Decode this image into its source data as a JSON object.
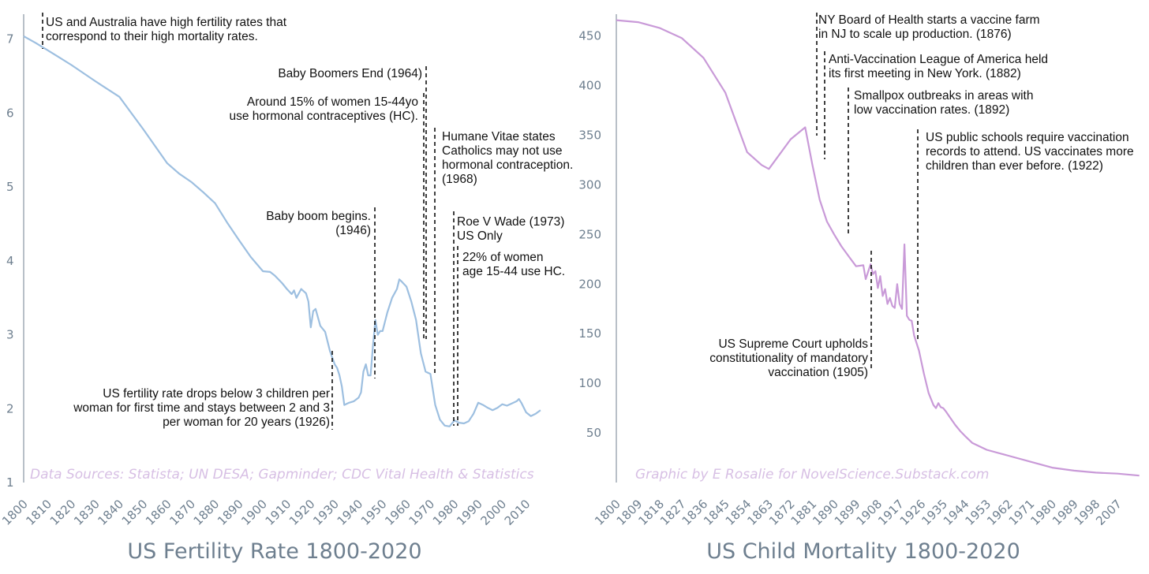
{
  "chart_data": [
    {
      "type": "line",
      "title": "US Fertility Rate 1800-2020",
      "xlabel": "",
      "ylabel": "",
      "xlim": [
        1800,
        2020
      ],
      "ylim": [
        1,
        7.05
      ],
      "y_ticks": [
        "1",
        "2",
        "3",
        "4",
        "5",
        "6",
        "7"
      ],
      "x_ticks": [
        "1800",
        "1810",
        "1820",
        "1830",
        "1840",
        "1850",
        "1860",
        "1870",
        "1880",
        "1890",
        "1900",
        "1910",
        "1920",
        "1930",
        "1940",
        "1950",
        "1960",
        "1970",
        "1980",
        "1990",
        "2000",
        "2010"
      ],
      "color": "#9dbfe0",
      "source": "Data Sources: Statista; UN DESA; Gapminder; CDC Vital Health & Statistics",
      "series": [
        {
          "name": "Fertility rate",
          "x": [
            1800,
            1805,
            1810,
            1815,
            1820,
            1830,
            1840,
            1845,
            1850,
            1855,
            1860,
            1865,
            1870,
            1875,
            1880,
            1885,
            1890,
            1895,
            1900,
            1903,
            1905,
            1908,
            1910,
            1912,
            1913,
            1914,
            1916,
            1918,
            1919,
            1920,
            1921,
            1922,
            1924,
            1926,
            1928,
            1930,
            1931,
            1932,
            1933,
            1934,
            1936,
            1938,
            1940,
            1941,
            1942,
            1943,
            1944,
            1945,
            1946,
            1947,
            1948,
            1949,
            1950,
            1952,
            1954,
            1956,
            1957,
            1958,
            1960,
            1962,
            1964,
            1966,
            1968,
            1970,
            1972,
            1974,
            1976,
            1978,
            1980,
            1982,
            1984,
            1986,
            1988,
            1990,
            1992,
            1994,
            1996,
            1998,
            2000,
            2002,
            2004,
            2006,
            2007,
            2008,
            2010,
            2012,
            2014,
            2016
          ],
          "y": [
            7.04,
            6.95,
            6.85,
            6.75,
            6.65,
            6.43,
            6.22,
            6.0,
            5.78,
            5.55,
            5.32,
            5.18,
            5.07,
            4.93,
            4.78,
            4.52,
            4.28,
            4.05,
            3.86,
            3.85,
            3.8,
            3.7,
            3.62,
            3.55,
            3.6,
            3.5,
            3.62,
            3.56,
            3.45,
            3.1,
            3.32,
            3.35,
            3.12,
            3.04,
            2.78,
            2.6,
            2.55,
            2.45,
            2.3,
            2.05,
            2.08,
            2.1,
            2.15,
            2.22,
            2.5,
            2.6,
            2.45,
            2.45,
            2.85,
            3.2,
            3.0,
            3.05,
            3.05,
            3.3,
            3.5,
            3.62,
            3.75,
            3.72,
            3.65,
            3.45,
            3.2,
            2.75,
            2.5,
            2.47,
            2.05,
            1.85,
            1.77,
            1.76,
            1.84,
            1.81,
            1.8,
            1.83,
            1.93,
            2.08,
            2.05,
            2.01,
            1.98,
            2.01,
            2.06,
            2.04,
            2.07,
            2.1,
            2.13,
            2.08,
            1.95,
            1.9,
            1.93,
            1.98
          ]
        }
      ],
      "annotations": [
        {
          "year": 1926,
          "text": [
            "US fertility rate drops below 3 children per",
            "woman for first time and stays between 2 and 3",
            "per woman for 20 years (1926)"
          ]
        },
        {
          "year": 1946,
          "text": [
            "Baby boom begins.",
            "(1946)"
          ]
        },
        {
          "year": 1964,
          "text": [
            "Baby Boomers End (1964)"
          ]
        },
        {
          "year": 1962,
          "text": [
            "Around 15% of women 15-44yo",
            "use hormonal contraceptives (HC)."
          ]
        },
        {
          "year": 1968,
          "text": [
            "Humane Vitae states",
            "Catholics may not use",
            "hormonal contraception.",
            "(1968)"
          ]
        },
        {
          "year": 1973,
          "text": [
            "Roe V Wade (1973)",
            "US Only"
          ]
        },
        {
          "year": 1976,
          "text": [
            "22% of women",
            "age 15-44 use HC."
          ]
        },
        {
          "year": 1804,
          "text": [
            "US and Australia have high fertility rates that",
            "correspond to their high mortality rates."
          ]
        }
      ]
    },
    {
      "type": "line",
      "title": "US Child Mortality 1800-2020",
      "xlabel": "",
      "ylabel": "",
      "xlim": [
        1800,
        2020
      ],
      "ylim": [
        0,
        472
      ],
      "y_ticks": [
        "50",
        "100",
        "150",
        "200",
        "250",
        "300",
        "350",
        "400",
        "450"
      ],
      "x_ticks": [
        "1800",
        "1809",
        "1818",
        "1827",
        "1836",
        "1845",
        "1854",
        "1863",
        "1872",
        "1881",
        "1890",
        "1899",
        "1908",
        "1917",
        "1926",
        "1935",
        "1944",
        "1953",
        "1962",
        "1971",
        "1980",
        "1989",
        "1998",
        "2007"
      ],
      "color": "#c99ad8",
      "source": "Graphic by E Rosalie for NovelScience.Substack.com",
      "series": [
        {
          "name": "Child mortality (per 1000)",
          "x": [
            1800,
            1809,
            1818,
            1827,
            1836,
            1845,
            1854,
            1860,
            1863,
            1872,
            1878,
            1881,
            1884,
            1887,
            1890,
            1893,
            1896,
            1899,
            1902,
            1903,
            1905,
            1906,
            1907,
            1908,
            1909,
            1910,
            1911,
            1912,
            1913,
            1914,
            1915,
            1916,
            1917,
            1918,
            1919,
            1920,
            1921,
            1922,
            1923,
            1925,
            1927,
            1929,
            1931,
            1932,
            1933,
            1934,
            1935,
            1936,
            1938,
            1940,
            1942,
            1944,
            1947,
            1953,
            1962,
            1971,
            1980,
            1989,
            1998,
            2007,
            2016
          ],
          "y": [
            466,
            464,
            458,
            448,
            428,
            393,
            333,
            320,
            316,
            346,
            358,
            320,
            285,
            263,
            250,
            238,
            228,
            218,
            219,
            205,
            220,
            210,
            213,
            196,
            208,
            188,
            195,
            180,
            186,
            178,
            176,
            200,
            180,
            175,
            240,
            168,
            164,
            163,
            148,
            133,
            110,
            90,
            78,
            75,
            80,
            76,
            75,
            72,
            65,
            58,
            52,
            47,
            40,
            33,
            27,
            21,
            15,
            12,
            10,
            9,
            7
          ]
        }
      ],
      "annotations": [
        {
          "year": 1880,
          "text": [
            "NY Board of Health starts a vaccine farm",
            "in NJ to scale up production. (1876)"
          ]
        },
        {
          "year": 1884,
          "text": [
            "Anti-Vaccination League of America held",
            "its first meeting in New York. (1882)"
          ]
        },
        {
          "year": 1893,
          "text": [
            "Smallpox outbreaks in areas with",
            "low vaccination rates. (1892)"
          ]
        },
        {
          "year": 1905,
          "text": [
            "US Supreme Court upholds",
            "constitutionality of mandatory",
            "vaccination (1905)"
          ]
        },
        {
          "year": 1922,
          "text": [
            "US public schools require vaccination",
            "records to attend. US vaccinates more",
            "children than ever before. (1922)"
          ]
        }
      ]
    }
  ]
}
